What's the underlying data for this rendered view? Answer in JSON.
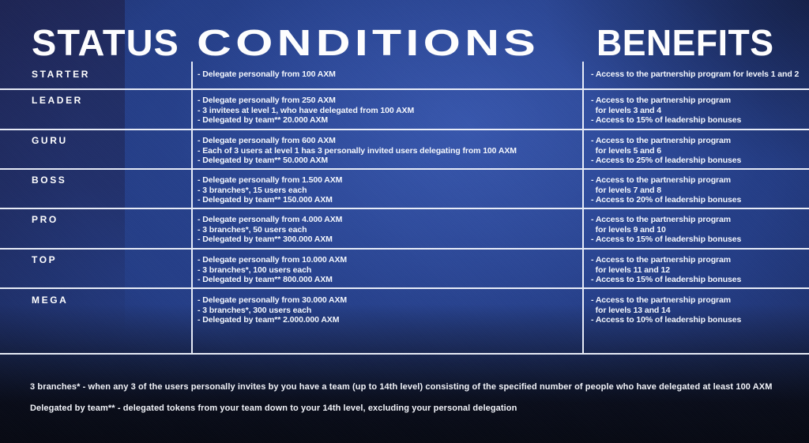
{
  "header": {
    "status_label": "STATUS",
    "conditions_label": "CONDITIONS",
    "benefits_label": "BENEFITS"
  },
  "table": {
    "rows": [
      {
        "status": "STARTER",
        "conditions": [
          "- Delegate personally from 100 AXM"
        ],
        "benefits": [
          "- Access to the partnership program for levels 1 and 2"
        ]
      },
      {
        "status": "LEADER",
        "conditions": [
          "- Delegate personally from 250 AXM",
          "- 3 invitees at level 1, who have delegated from 100 AXM",
          "- Delegated by team** 20.000 AXM"
        ],
        "benefits": [
          "- Access to the partnership program",
          "  for levels 3 and 4",
          "- Access to 15% of leadership bonuses"
        ]
      },
      {
        "status": "GURU",
        "conditions": [
          "- Delegate personally from 600 AXM",
          "- Each of 3 users at level 1 has 3 personally invited users delegating from 100 AXM",
          "- Delegated by team** 50.000 AXM"
        ],
        "benefits": [
          "- Access to the partnership program",
          "  for levels 5 and 6",
          "- Access to 25% of leadership bonuses"
        ]
      },
      {
        "status": "BOSS",
        "conditions": [
          "- Delegate personally from 1.500 AXM",
          "- 3 branches*, 15 users each",
          "- Delegated by team** 150.000 AXM"
        ],
        "benefits": [
          "- Access to the partnership program",
          "  for levels 7 and 8",
          "- Access to 20% of leadership bonuses"
        ]
      },
      {
        "status": "PRO",
        "conditions": [
          "- Delegate personally from 4.000 AXM",
          "- 3 branches*, 50 users each",
          "- Delegated by team** 300.000 AXM"
        ],
        "benefits": [
          "- Access to the partnership program",
          "  for levels 9 and 10",
          "- Access to 15% of leadership bonuses"
        ]
      },
      {
        "status": "TOP",
        "conditions": [
          "- Delegate personally from 10.000 AXM",
          "- 3 branches*, 100 users each",
          "- Delegated by team** 800.000 AXM"
        ],
        "benefits": [
          "- Access to the partnership program",
          "  for levels 11 and 12",
          "- Access to 15% of leadership bonuses"
        ]
      },
      {
        "status": "MEGA",
        "conditions": [
          "- Delegate personally from 30.000 AXM",
          "- 3 branches*, 300 users each",
          "- Delegated by team** 2.000.000 AXM"
        ],
        "benefits": [
          "- Access to the partnership program",
          "  for levels 13 and 14",
          "- Access to 10% of leadership bonuses"
        ]
      }
    ]
  },
  "footnotes": [
    "3 branches* - when any 3 of the users personally invites by you have a team (up to 14th level) consisting of the specified number of people who have delegated at least 100 AXM",
    "Delegated by team** - delegated tokens from your team down to your 14th level, excluding your personal delegation"
  ],
  "colors": {
    "background_blue": "#2a4695",
    "dark_navy": "#0d1326",
    "line_white": "#eef3fc",
    "text_white": "#ffffff"
  }
}
